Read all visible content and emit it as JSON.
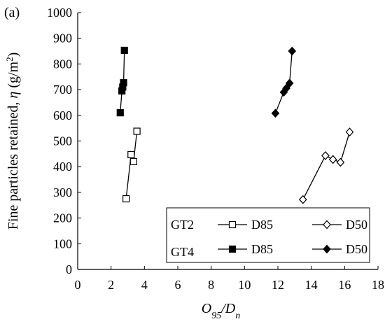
{
  "chart_data": {
    "type": "scatter",
    "panel_label": "(a)",
    "title": "",
    "xlabel_parts": [
      "O",
      "95",
      "/D",
      "n"
    ],
    "ylabel_parts": [
      "Fine particles retained, ",
      "η",
      " (g/m",
      "2",
      ")"
    ],
    "xlim": [
      0,
      18
    ],
    "ylim": [
      0,
      1000
    ],
    "xticks": [
      0,
      2,
      4,
      6,
      8,
      10,
      12,
      14,
      16,
      18
    ],
    "yticks": [
      0,
      100,
      200,
      300,
      400,
      500,
      600,
      700,
      800,
      900,
      1000
    ],
    "grid": false,
    "legend": {
      "placement": "bottom-right",
      "groups": [
        {
          "label": "GT2",
          "entries": [
            {
              "series": 0,
              "label": "D85"
            },
            {
              "series": 1,
              "label": "D50"
            }
          ]
        },
        {
          "label": "GT4",
          "entries": [
            {
              "series": 2,
              "label": "D85"
            },
            {
              "series": 3,
              "label": "D50"
            }
          ]
        }
      ]
    },
    "series": [
      {
        "group": "GT2",
        "label": "D85",
        "marker": "square",
        "filled": false,
        "color": "#000000",
        "points": [
          [
            2.9,
            275
          ],
          [
            3.2,
            447
          ],
          [
            3.35,
            420
          ],
          [
            3.55,
            538
          ]
        ]
      },
      {
        "group": "GT2",
        "label": "D50",
        "marker": "diamond",
        "filled": false,
        "color": "#000000",
        "points": [
          [
            13.5,
            272
          ],
          [
            14.85,
            443
          ],
          [
            15.3,
            428
          ],
          [
            15.75,
            417
          ],
          [
            16.3,
            535
          ]
        ]
      },
      {
        "group": "GT4",
        "label": "D85",
        "marker": "square",
        "filled": true,
        "color": "#000000",
        "points": [
          [
            2.55,
            610
          ],
          [
            2.65,
            695
          ],
          [
            2.7,
            710
          ],
          [
            2.75,
            727
          ],
          [
            2.8,
            853
          ]
        ]
      },
      {
        "group": "GT4",
        "label": "D50",
        "marker": "diamond",
        "filled": true,
        "color": "#000000",
        "points": [
          [
            11.85,
            608
          ],
          [
            12.35,
            690
          ],
          [
            12.5,
            705
          ],
          [
            12.7,
            725
          ],
          [
            12.85,
            850
          ]
        ]
      }
    ]
  }
}
